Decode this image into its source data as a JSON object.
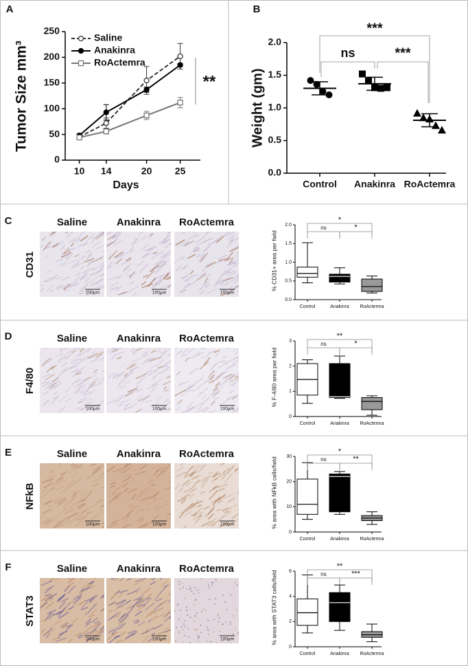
{
  "figure": {
    "panels": [
      "A",
      "B",
      "C",
      "D",
      "E",
      "F"
    ],
    "rows": [
      {
        "label": "CD31",
        "images": [
          "Saline",
          "Anakinra",
          "RoActemra"
        ],
        "scale_bars": [
          "100µm",
          "100µm",
          "100µm"
        ]
      },
      {
        "label": "F4/80",
        "images": [
          "Saline",
          "Anakinra",
          "RoActemra"
        ],
        "scale_bars": [
          "100µm",
          "100µm",
          "100µm"
        ]
      },
      {
        "label": "NFkB",
        "images": [
          "Saline",
          "Anakinra",
          "RoActemra"
        ],
        "scale_bars": [
          "100µm",
          "100µm",
          "100µm"
        ]
      },
      {
        "label": "STAT3",
        "images": [
          "Saline",
          "Anakinra",
          "RoActemra"
        ],
        "scale_bars": [
          "100µm",
          "100µm",
          "100µm"
        ]
      }
    ]
  },
  "chart_data": [
    {
      "type": "line",
      "xlabel": "Days",
      "ylabel": "Tumor Size mm³",
      "annotation": "**",
      "x": [
        10,
        14,
        20,
        25
      ],
      "xlim": [
        7.9,
        28
      ],
      "xticks": [
        10,
        14,
        20,
        25
      ],
      "ylim": [
        0,
        250
      ],
      "yticks": [
        0,
        50,
        100,
        150,
        200,
        250
      ],
      "series": [
        {
          "name": "Saline",
          "color": "#333333",
          "dashed": true,
          "marker": "open-circle",
          "values": [
            45,
            72,
            155,
            202
          ],
          "errors": [
            3,
            10,
            27,
            25
          ]
        },
        {
          "name": "Anakinra",
          "color": "#000000",
          "dashed": false,
          "marker": "filled-circle",
          "values": [
            48,
            93,
            137,
            185
          ],
          "errors": [
            3,
            15,
            5,
            3
          ]
        },
        {
          "name": "RoActemra",
          "color": "#777777",
          "dashed": false,
          "marker": "open-square",
          "values": [
            44,
            56,
            87,
            112
          ],
          "errors": [
            3,
            5,
            8,
            10
          ]
        }
      ]
    },
    {
      "type": "dotplot",
      "ylabel": "Weight (gm)",
      "categories": [
        "Control",
        "Anakinra",
        "RoActemra"
      ],
      "markers": [
        "circle",
        "square",
        "triangle"
      ],
      "points": [
        [
          1.42,
          1.36,
          1.25,
          1.2
        ],
        [
          1.52,
          1.42,
          1.31,
          1.3,
          1.31
        ],
        [
          0.92,
          0.85,
          0.83,
          0.73,
          0.66
        ]
      ],
      "means": [
        1.3,
        1.37,
        0.81
      ],
      "sds": [
        0.1,
        0.1,
        0.1
      ],
      "ylim": [
        0,
        2
      ],
      "yticks": [
        {
          "value": 0,
          "label": "0.0"
        },
        {
          "value": 0.5,
          "label": "0.5"
        },
        {
          "value": 1,
          "label": "1.0"
        },
        {
          "value": 1.5,
          "label": "1.5"
        },
        {
          "value": 2,
          "label": "2.0"
        }
      ],
      "annotations": [
        "ns",
        "***",
        "***"
      ]
    },
    {
      "type": "box",
      "ylabel": "% CD31+ area per field",
      "categories": [
        "Control",
        "Anakinra",
        "RoActemra"
      ],
      "colors": [
        "#ffffff",
        "#000000",
        "#999999"
      ],
      "boxes": [
        {
          "min": 0.45,
          "q1": 0.6,
          "median": 0.7,
          "q3": 0.87,
          "max": 1.52
        },
        {
          "min": 0.42,
          "q1": 0.47,
          "median": 0.62,
          "q3": 0.68,
          "max": 0.85
        },
        {
          "min": 0.18,
          "q1": 0.22,
          "median": 0.35,
          "q3": 0.55,
          "max": 0.63
        }
      ],
      "ylim": [
        0,
        2
      ],
      "yticks": [
        {
          "value": 0,
          "label": "0.0"
        },
        {
          "value": 0.5,
          "label": "0.5"
        },
        {
          "value": 1,
          "label": "1.0"
        },
        {
          "value": 1.5,
          "label": "1.5"
        },
        {
          "value": 2,
          "label": "2.0"
        }
      ],
      "annotations": [
        "ns",
        "*",
        "*"
      ]
    },
    {
      "type": "box",
      "ylabel": "% F-4/80 area per field",
      "categories": [
        "Control",
        "Anakinra",
        "RoActemra"
      ],
      "colors": [
        "#ffffff",
        "#000000",
        "#999999"
      ],
      "boxes": [
        {
          "min": 0.52,
          "q1": 0.85,
          "median": 1.47,
          "q3": 2.1,
          "max": 2.25
        },
        {
          "min": 0.72,
          "q1": 0.75,
          "median": 0.78,
          "q3": 2.1,
          "max": 2.4
        },
        {
          "min": 0.05,
          "q1": 0.27,
          "median": 0.6,
          "q3": 0.75,
          "max": 0.82
        }
      ],
      "ylim": [
        0,
        3
      ],
      "yticks": [
        0,
        1,
        2,
        3
      ],
      "annotations": [
        "ns",
        "**",
        "*"
      ]
    },
    {
      "type": "box",
      "ylabel": "% area with NFkB cells/field",
      "categories": [
        "Control",
        "Anakinra",
        "RoActemra"
      ],
      "colors": [
        "#ffffff",
        "#000000",
        "#999999"
      ],
      "boxes": [
        {
          "min": 5,
          "q1": 7,
          "median": 11,
          "q3": 21,
          "max": 27.5
        },
        {
          "min": 7,
          "q1": 8,
          "median": 22,
          "q3": 23,
          "max": 24
        },
        {
          "min": 3,
          "q1": 4.5,
          "median": 5.5,
          "q3": 6.5,
          "max": 8
        }
      ],
      "ylim": [
        0,
        30
      ],
      "yticks": [
        0,
        10,
        20,
        30
      ],
      "annotations": [
        "ns",
        "*",
        "**"
      ]
    },
    {
      "type": "box",
      "ylabel": "% area with STAT3 cells/field",
      "categories": [
        "Control",
        "Anakinra",
        "RoActemra"
      ],
      "colors": [
        "#ffffff",
        "#000000",
        "#999999"
      ],
      "boxes": [
        {
          "min": 1.1,
          "q1": 1.7,
          "median": 2.7,
          "q3": 3.8,
          "max": 5.7
        },
        {
          "min": 1.3,
          "q1": 2.0,
          "median": 3.5,
          "q3": 4.3,
          "max": 4.9
        },
        {
          "min": 0.4,
          "q1": 0.75,
          "median": 0.95,
          "q3": 1.2,
          "max": 1.8
        }
      ],
      "ylim": [
        0,
        6
      ],
      "yticks": [
        0,
        2,
        4,
        6
      ],
      "annotations": [
        "ns",
        "**",
        "***"
      ]
    }
  ]
}
